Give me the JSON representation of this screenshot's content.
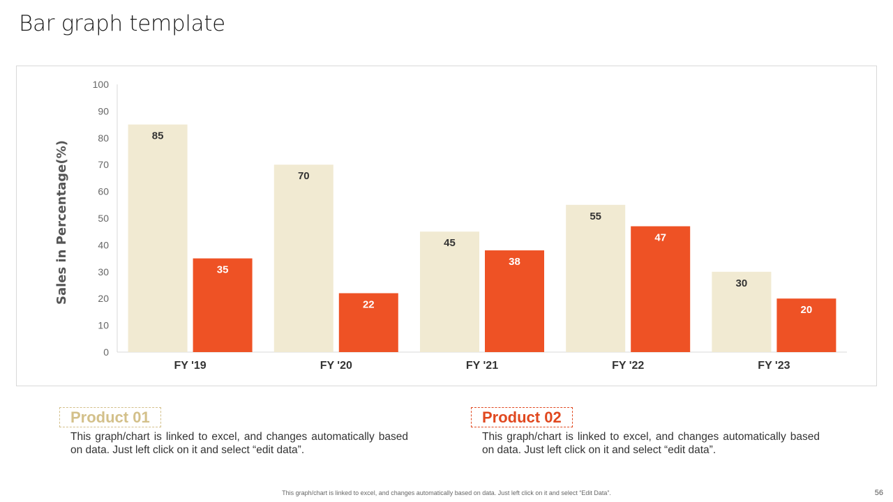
{
  "page": {
    "title": "Bar graph template",
    "footer_note": "This graph/chart is linked to excel, and changes automatically based on data. Just left click on it and select “Edit Data”.",
    "page_number": "56"
  },
  "products": [
    {
      "label": "Product 01",
      "description": "This graph/chart is linked to excel, and changes automatically based on data. Just left click on it and select “edit data”."
    },
    {
      "label": "Product 02",
      "description": "This graph/chart is linked to excel, and changes automatically based on data. Just left click on it and select “edit data”."
    }
  ],
  "colors": {
    "series1": "#f1ead2",
    "series2": "#ee5225",
    "series1_label": "#333333",
    "series2_label": "#ffffff",
    "axis_text": "#666666",
    "category_text": "#333333"
  },
  "chart_data": {
    "type": "bar",
    "title": "",
    "xlabel": "",
    "ylabel": "Sales in Percentage(%)",
    "ylim": [
      0,
      100
    ],
    "yticks": [
      0,
      10,
      20,
      30,
      40,
      50,
      60,
      70,
      80,
      90,
      100
    ],
    "categories": [
      "FY '19",
      "FY '20",
      "FY '21",
      "FY '22",
      "FY '23"
    ],
    "series": [
      {
        "name": "Product 01",
        "values": [
          85,
          70,
          45,
          55,
          30
        ]
      },
      {
        "name": "Product 02",
        "values": [
          35,
          22,
          38,
          47,
          20
        ]
      }
    ],
    "grid": false,
    "legend": "none"
  }
}
